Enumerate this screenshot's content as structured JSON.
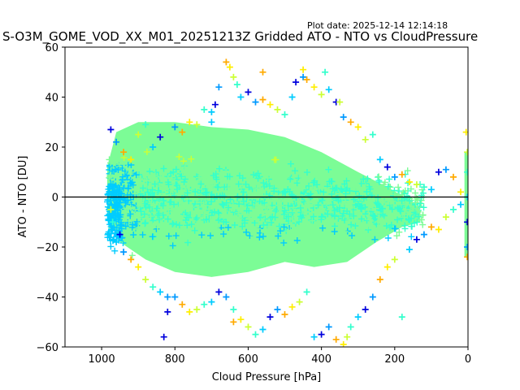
{
  "plot_date": "Plot date: 2025-12-14 12:14:18",
  "chart_data": {
    "type": "scatter",
    "title": "S-O3M_GOME_VOD_XX_M01_20251213Z Gridded ATO - NTO vs CloudPressure",
    "xlabel": "Cloud Pressure [hPa]",
    "ylabel": "ATO - NTO [DU]",
    "xlim": [
      1100,
      0
    ],
    "ylim": [
      -60,
      60
    ],
    "x_inverted": true,
    "xticks": [
      1000,
      800,
      600,
      400,
      200,
      0
    ],
    "yticks": [
      -60,
      -40,
      -20,
      0,
      20,
      40,
      60
    ],
    "reference_line_y": 0,
    "marker": "+",
    "grid": false,
    "colors": {
      "dense_core": "#7cfc96",
      "low_pressure_edge": "#00ccff",
      "mid_band": "#33ffcc",
      "yellow_green": "#ccff33",
      "yellow": "#ffee00",
      "orange": "#ffaa00",
      "blue": "#0000dd",
      "light_blue": "#0099ff"
    },
    "series": [
      {
        "values": [
          [
            975,
            27
          ],
          [
            960,
            22
          ],
          [
            940,
            18
          ],
          [
            920,
            15
          ],
          [
            900,
            25
          ],
          [
            880,
            29
          ],
          [
            860,
            20
          ],
          [
            840,
            24
          ],
          [
            800,
            28
          ],
          [
            780,
            26
          ],
          [
            760,
            30
          ],
          [
            740,
            29
          ],
          [
            720,
            35
          ],
          [
            700,
            34
          ],
          [
            690,
            37
          ],
          [
            680,
            44
          ],
          [
            660,
            54
          ],
          [
            650,
            52
          ],
          [
            640,
            48
          ],
          [
            630,
            45
          ],
          [
            620,
            40
          ],
          [
            600,
            42
          ],
          [
            580,
            38
          ],
          [
            560,
            39
          ],
          [
            540,
            37
          ],
          [
            520,
            35
          ],
          [
            500,
            33
          ],
          [
            480,
            40
          ],
          [
            470,
            46
          ],
          [
            450,
            48
          ],
          [
            440,
            47
          ],
          [
            420,
            44
          ],
          [
            400,
            41
          ],
          [
            390,
            50
          ],
          [
            380,
            43
          ],
          [
            360,
            38
          ],
          [
            340,
            32
          ],
          [
            320,
            30
          ],
          [
            300,
            28
          ],
          [
            280,
            23
          ],
          [
            260,
            25
          ],
          [
            240,
            15
          ],
          [
            220,
            12
          ],
          [
            200,
            8
          ],
          [
            180,
            9
          ],
          [
            160,
            6
          ],
          [
            140,
            5
          ],
          [
            120,
            4
          ],
          [
            100,
            3
          ],
          [
            80,
            10
          ],
          [
            60,
            11
          ],
          [
            40,
            8
          ],
          [
            20,
            2
          ],
          [
            2,
            18
          ],
          [
            2,
            10
          ],
          [
            2,
            0
          ],
          [
            2,
            -10
          ],
          [
            2,
            -20
          ],
          [
            2,
            -24
          ],
          [
            5,
            26
          ],
          [
            975,
            -5
          ],
          [
            970,
            -10
          ],
          [
            960,
            -18
          ],
          [
            950,
            -15
          ],
          [
            940,
            -22
          ],
          [
            920,
            -25
          ],
          [
            900,
            -28
          ],
          [
            880,
            -33
          ],
          [
            860,
            -36
          ],
          [
            840,
            -38
          ],
          [
            820,
            -46
          ],
          [
            800,
            -40
          ],
          [
            780,
            -43
          ],
          [
            760,
            -46
          ],
          [
            740,
            -45
          ],
          [
            720,
            -43
          ],
          [
            700,
            -42
          ],
          [
            680,
            -38
          ],
          [
            660,
            -40
          ],
          [
            640,
            -50
          ],
          [
            620,
            -49
          ],
          [
            600,
            -52
          ],
          [
            580,
            -55
          ],
          [
            560,
            -53
          ],
          [
            540,
            -48
          ],
          [
            520,
            -45
          ],
          [
            500,
            -47
          ],
          [
            480,
            -44
          ],
          [
            460,
            -42
          ],
          [
            440,
            -38
          ],
          [
            420,
            -56
          ],
          [
            400,
            -55
          ],
          [
            380,
            -52
          ],
          [
            360,
            -57
          ],
          [
            340,
            -59
          ],
          [
            330,
            -56
          ],
          [
            320,
            -52
          ],
          [
            300,
            -48
          ],
          [
            280,
            -45
          ],
          [
            260,
            -40
          ],
          [
            240,
            -33
          ],
          [
            220,
            -28
          ],
          [
            200,
            -25
          ],
          [
            180,
            -48
          ],
          [
            160,
            -21
          ],
          [
            140,
            -17
          ],
          [
            120,
            -15
          ],
          [
            100,
            -12
          ],
          [
            80,
            -13
          ],
          [
            60,
            -8
          ],
          [
            40,
            -5
          ],
          [
            20,
            -3
          ],
          [
            830,
            -56
          ],
          [
            820,
            -40
          ],
          [
            560,
            50
          ],
          [
            450,
            51
          ],
          [
            350,
            38
          ],
          [
            640,
            -45
          ],
          [
            700,
            30
          ]
        ]
      }
    ]
  }
}
